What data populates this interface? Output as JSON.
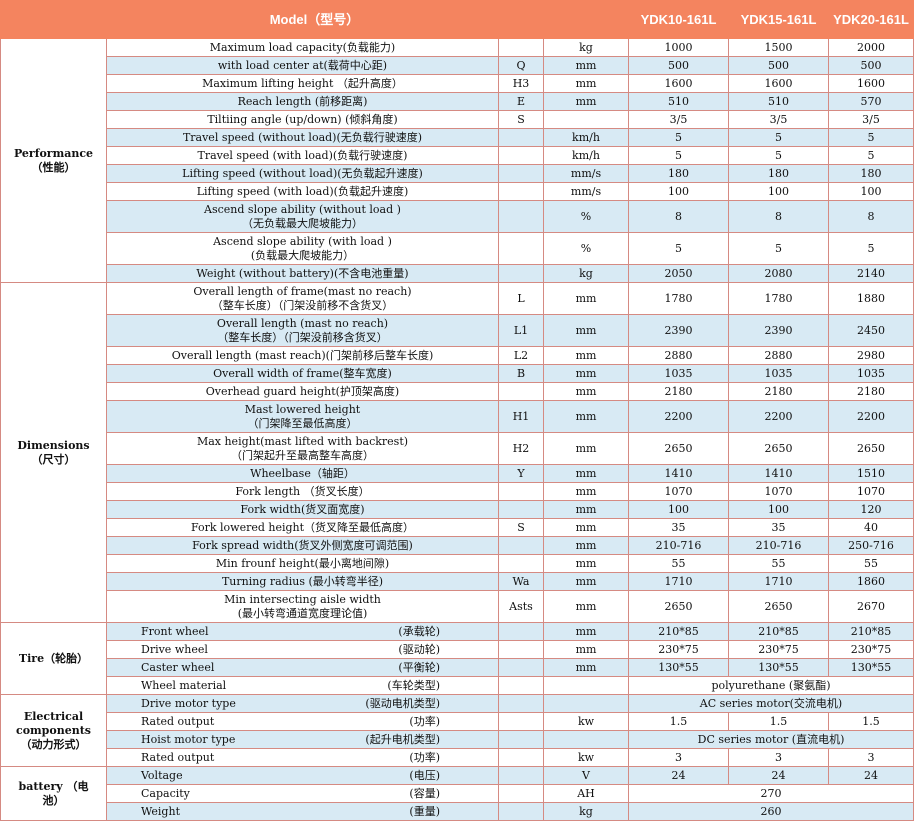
{
  "header": {
    "model_label": "Model（型号）",
    "models": [
      "YDK10-161L",
      "YDK15-161L",
      "YDK20-161L"
    ]
  },
  "sections": [
    {
      "title": "Performance\n（性能）",
      "rows": [
        {
          "label": "Maximum load capacity(负载能力)",
          "sym": "",
          "unit": "kg",
          "v": [
            "1000",
            "1500",
            "2000"
          ]
        },
        {
          "label": "with load center at(载荷中心距)",
          "sym": "Q",
          "unit": "mm",
          "v": [
            "500",
            "500",
            "500"
          ]
        },
        {
          "label": "Maximum lifting height （起升高度）",
          "sym": "H3",
          "unit": "mm",
          "v": [
            "1600",
            "1600",
            "1600"
          ]
        },
        {
          "label": "Reach length (前移距离)",
          "sym": "E",
          "unit": "mm",
          "v": [
            "510",
            "510",
            "570"
          ]
        },
        {
          "label": "Tiltiing angle (up/down) (倾斜角度)",
          "sym": "S",
          "unit": "",
          "v": [
            "3/5",
            "3/5",
            "3/5"
          ]
        },
        {
          "label": "Travel speed (without load)(无负载行驶速度)",
          "sym": "",
          "unit": "km/h",
          "v": [
            "5",
            "5",
            "5"
          ]
        },
        {
          "label": "Travel speed (with load)(负载行驶速度)",
          "sym": "",
          "unit": "km/h",
          "v": [
            "5",
            "5",
            "5"
          ]
        },
        {
          "label": "Lifting speed (without load)(无负载起升速度)",
          "sym": "",
          "unit": "mm/s",
          "v": [
            "180",
            "180",
            "180"
          ]
        },
        {
          "label": "Lifting speed (with load)(负载起升速度)",
          "sym": "",
          "unit": "mm/s",
          "v": [
            "100",
            "100",
            "100"
          ]
        },
        {
          "label": "Ascend slope ability (without load )\n（无负载最大爬坡能力）",
          "sym": "",
          "unit": "%",
          "v": [
            "8",
            "8",
            "8"
          ]
        },
        {
          "label": "Ascend slope ability (with load )\n(负载最大爬坡能力）",
          "sym": "",
          "unit": "%",
          "v": [
            "5",
            "5",
            "5"
          ]
        },
        {
          "label": "Weight (without battery)(不含电池重量)",
          "sym": "",
          "unit": "kg",
          "v": [
            "2050",
            "2080",
            "2140"
          ]
        }
      ]
    },
    {
      "title": "Dimensions\n（尺寸）",
      "rows": [
        {
          "label": "Overall length of frame(mast no reach)\n（整车长度）（门架没前移不含货叉）",
          "sym": "L",
          "unit": "mm",
          "v": [
            "1780",
            "1780",
            "1880"
          ]
        },
        {
          "label": "Overall length (mast no reach)\n（整车长度）（门架没前移含货叉）",
          "sym": "L1",
          "unit": "mm",
          "v": [
            "2390",
            "2390",
            "2450"
          ]
        },
        {
          "label": "Overall length (mast reach)(门架前移后整车长度)",
          "sym": "L2",
          "unit": "mm",
          "v": [
            "2880",
            "2880",
            "2980"
          ]
        },
        {
          "label": "Overall width of frame(整车宽度)",
          "sym": "B",
          "unit": "mm",
          "v": [
            "1035",
            "1035",
            "1035"
          ]
        },
        {
          "label": "Overhead guard height(护顶架高度)",
          "sym": "",
          "unit": "mm",
          "v": [
            "2180",
            "2180",
            "2180"
          ]
        },
        {
          "label": "Mast lowered height\n（门架降至最低高度）",
          "sym": "H1",
          "unit": "mm",
          "v": [
            "2200",
            "2200",
            "2200"
          ]
        },
        {
          "label": "Max height(mast lifted with backrest)\n（门架起升至最高整车高度）",
          "sym": "H2",
          "unit": "mm",
          "v": [
            "2650",
            "2650",
            "2650"
          ]
        },
        {
          "label": "Wheelbase（轴距）",
          "sym": "Y",
          "unit": "mm",
          "v": [
            "1410",
            "1410",
            "1510"
          ]
        },
        {
          "label": "Fork length （货叉长度）",
          "sym": "",
          "unit": "mm",
          "v": [
            "1070",
            "1070",
            "1070"
          ]
        },
        {
          "label": "Fork width(货叉面宽度)",
          "sym": "",
          "unit": "mm",
          "v": [
            "100",
            "100",
            "120"
          ]
        },
        {
          "label": "Fork lowered height（货叉降至最低高度）",
          "sym": "S",
          "unit": "mm",
          "v": [
            "35",
            "35",
            "40"
          ]
        },
        {
          "label": "Fork spread width(货叉外侧宽度可调范围)",
          "sym": "",
          "unit": "mm",
          "v": [
            "210-716",
            "210-716",
            "250-716"
          ]
        },
        {
          "label": "Min frounf height(最小离地间隙)",
          "sym": "",
          "unit": "mm",
          "v": [
            "55",
            "55",
            "55"
          ]
        },
        {
          "label": "Turning radius (最小转弯半径)",
          "sym": "Wa",
          "unit": "mm",
          "v": [
            "1710",
            "1710",
            "1860"
          ]
        },
        {
          "label": "Min intersecting aisle width\n(最小转弯通道宽度理论值)",
          "sym": "Asts",
          "unit": "mm",
          "v": [
            "2650",
            "2650",
            "2670"
          ]
        }
      ]
    },
    {
      "title": "Tire（轮胎）",
      "rows": [
        {
          "label": "Front wheel",
          "cn": "(承载轮)",
          "sym": "",
          "unit": "mm",
          "v": [
            "210*85",
            "210*85",
            "210*85"
          ]
        },
        {
          "label": "Drive wheel",
          "cn": "(驱动轮)",
          "sym": "",
          "unit": "mm",
          "v": [
            "230*75",
            "230*75",
            "230*75"
          ]
        },
        {
          "label": "Caster wheel",
          "cn": "(平衡轮)",
          "sym": "",
          "unit": "mm",
          "v": [
            "130*55",
            "130*55",
            "130*55"
          ]
        },
        {
          "label": "Wheel material",
          "cn": "(车轮类型)",
          "sym": "",
          "unit": "",
          "merged": "polyurethane (聚氨酯)"
        }
      ]
    },
    {
      "title": "Electrical\ncomponents\n（动力形式）",
      "rows": [
        {
          "label": "Drive motor type",
          "cn": "(驱动电机类型)",
          "sym": "",
          "unit": "",
          "merged": "AC series motor(交流电机)"
        },
        {
          "label": "Rated output",
          "cn": "(功率)",
          "sym": "",
          "unit": "kw",
          "v": [
            "1.5",
            "1.5",
            "1.5"
          ]
        },
        {
          "label": "Hoist motor type",
          "cn": "(起升电机类型)",
          "sym": "",
          "unit": "",
          "merged": "DC series motor (直流电机)"
        },
        {
          "label": "Rated output",
          "cn": "(功率)",
          "sym": "",
          "unit": "kw",
          "v": [
            "3",
            "3",
            "3"
          ]
        }
      ]
    },
    {
      "title": "battery （电\n池）",
      "rows": [
        {
          "label": "Voltage",
          "cn": "(电压)",
          "sym": "",
          "unit": "V",
          "v": [
            "24",
            "24",
            "24"
          ]
        },
        {
          "label": "Capacity",
          "cn": "(容量)",
          "sym": "",
          "unit": "AH",
          "merged": "270"
        },
        {
          "label": "Weight",
          "cn": "(重量)",
          "sym": "",
          "unit": "kg",
          "merged": "260"
        }
      ]
    }
  ]
}
